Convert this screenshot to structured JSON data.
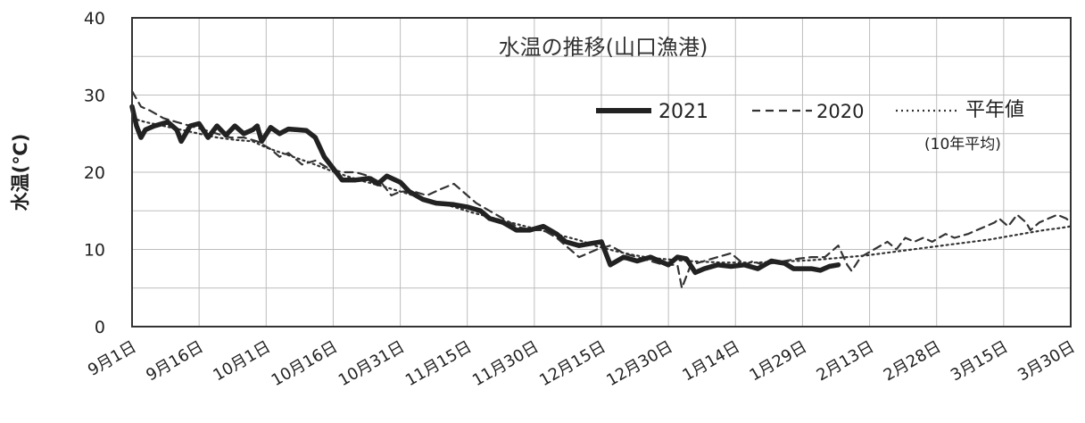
{
  "chart_data": {
    "type": "line",
    "title": "水温の推移(山口漁港)",
    "ylabel": "水温(℃)",
    "xlabel": "",
    "ylim": [
      0,
      40
    ],
    "yticks": [
      "0",
      "10",
      "20",
      "30",
      "40"
    ],
    "grid": true,
    "legend_position": "top-right (inside plot)",
    "categories": [
      "9月1日",
      "9月16日",
      "10月1日",
      "10月16日",
      "10月31日",
      "11月15日",
      "11月30日",
      "12月15日",
      "12月30日",
      "1月14日",
      "1月29日",
      "2月13日",
      "2月28日",
      "3月15日",
      "3月30日"
    ],
    "series": [
      {
        "name": "2021",
        "style": "solid-thick",
        "color": "#222222",
        "points": [
          [
            0,
            28.5
          ],
          [
            1,
            26
          ],
          [
            2,
            24.5
          ],
          [
            3,
            25.5
          ],
          [
            5,
            26
          ],
          [
            8,
            26.5
          ],
          [
            10,
            25.5
          ],
          [
            11,
            24
          ],
          [
            13,
            26
          ],
          [
            15,
            26.3
          ],
          [
            17,
            24.5
          ],
          [
            19,
            26
          ],
          [
            21,
            24.8
          ],
          [
            23,
            26
          ],
          [
            25,
            25
          ],
          [
            27,
            25.5
          ],
          [
            28,
            26
          ],
          [
            29,
            24
          ],
          [
            31,
            25.8
          ],
          [
            33,
            25
          ],
          [
            35,
            25.6
          ],
          [
            37,
            25.5
          ],
          [
            39,
            25.4
          ],
          [
            41,
            24.5
          ],
          [
            43,
            22
          ],
          [
            45,
            20.5
          ],
          [
            47,
            19
          ],
          [
            50,
            19
          ],
          [
            53,
            19.2
          ],
          [
            55,
            18.5
          ],
          [
            57,
            19.5
          ],
          [
            60,
            18.7
          ],
          [
            62,
            17.5
          ],
          [
            65,
            16.5
          ],
          [
            68,
            16
          ],
          [
            72,
            15.8
          ],
          [
            75,
            15.5
          ],
          [
            78,
            15
          ],
          [
            80,
            14
          ],
          [
            83,
            13.5
          ],
          [
            86,
            12.5
          ],
          [
            89,
            12.5
          ],
          [
            92,
            13
          ],
          [
            95,
            12
          ],
          [
            97,
            11
          ],
          [
            100,
            10.5
          ],
          [
            103,
            10.8
          ],
          [
            105,
            11
          ],
          [
            107,
            8
          ],
          [
            110,
            9
          ],
          [
            113,
            8.5
          ],
          [
            116,
            9
          ],
          [
            118,
            8.5
          ],
          [
            120,
            8
          ],
          [
            122,
            9
          ],
          [
            124,
            8.8
          ],
          [
            126,
            7
          ],
          [
            128,
            7.5
          ],
          [
            131,
            8
          ],
          [
            134,
            7.8
          ],
          [
            137,
            8
          ],
          [
            140,
            7.5
          ],
          [
            143,
            8.5
          ],
          [
            146,
            8.2
          ],
          [
            148,
            7.5
          ],
          [
            150,
            7.5
          ],
          [
            152,
            7.5
          ],
          [
            154,
            7.3
          ],
          [
            156,
            7.8
          ],
          [
            158,
            8
          ]
        ]
      },
      {
        "name": "2020",
        "style": "dashed",
        "color": "#333333",
        "points": [
          [
            0,
            30.5
          ],
          [
            2,
            28.5
          ],
          [
            4,
            28
          ],
          [
            7,
            27
          ],
          [
            10,
            26.5
          ],
          [
            13,
            26
          ],
          [
            16,
            25.5
          ],
          [
            19,
            25
          ],
          [
            22,
            24.5
          ],
          [
            25,
            24.5
          ],
          [
            28,
            24
          ],
          [
            31,
            23
          ],
          [
            33,
            22
          ],
          [
            35,
            22.5
          ],
          [
            38,
            21
          ],
          [
            41,
            21.5
          ],
          [
            44,
            20.5
          ],
          [
            47,
            20
          ],
          [
            50,
            20
          ],
          [
            53,
            19.5
          ],
          [
            56,
            18.5
          ],
          [
            58,
            17
          ],
          [
            60,
            17.5
          ],
          [
            63,
            17.5
          ],
          [
            66,
            17
          ],
          [
            69,
            17.8
          ],
          [
            72,
            18.5
          ],
          [
            74,
            17.5
          ],
          [
            77,
            16
          ],
          [
            80,
            15
          ],
          [
            83,
            14
          ],
          [
            86,
            13
          ],
          [
            89,
            12.5
          ],
          [
            92,
            12.5
          ],
          [
            95,
            11.5
          ],
          [
            98,
            10
          ],
          [
            100,
            9
          ],
          [
            102,
            9.5
          ],
          [
            104,
            10
          ],
          [
            107,
            10.5
          ],
          [
            110,
            9.5
          ],
          [
            113,
            9
          ],
          [
            116,
            8.5
          ],
          [
            119,
            8
          ],
          [
            122,
            8
          ],
          [
            123,
            5
          ],
          [
            125,
            8
          ],
          [
            128,
            8.5
          ],
          [
            131,
            9
          ],
          [
            134,
            9.5
          ],
          [
            137,
            8
          ],
          [
            139,
            8.5
          ],
          [
            141,
            8
          ],
          [
            143,
            8.2
          ],
          [
            146,
            8.5
          ],
          [
            149,
            8.8
          ],
          [
            152,
            9
          ],
          [
            155,
            9
          ],
          [
            158,
            10.5
          ],
          [
            160,
            8
          ],
          [
            161,
            7.2
          ],
          [
            163,
            9
          ],
          [
            166,
            10
          ],
          [
            169,
            11
          ],
          [
            171,
            10
          ],
          [
            173,
            11.5
          ],
          [
            175,
            11
          ],
          [
            177,
            11.5
          ],
          [
            179,
            11
          ],
          [
            182,
            12
          ],
          [
            184,
            11.5
          ],
          [
            187,
            12
          ],
          [
            189,
            12.5
          ],
          [
            191,
            13
          ],
          [
            193,
            13.5
          ],
          [
            194,
            14
          ],
          [
            196,
            13
          ],
          [
            198,
            14.5
          ],
          [
            200,
            13.5
          ],
          [
            201,
            12.5
          ],
          [
            203,
            13.5
          ],
          [
            205,
            14
          ],
          [
            207,
            14.5
          ],
          [
            209,
            14
          ],
          [
            210,
            13.5
          ]
        ]
      },
      {
        "name": "平年値",
        "name_note": "(10年平均)",
        "style": "dotted",
        "color": "#333333",
        "points": [
          [
            0,
            27
          ],
          [
            3,
            26.5
          ],
          [
            7,
            26
          ],
          [
            11,
            25.5
          ],
          [
            15,
            25
          ],
          [
            19,
            24.5
          ],
          [
            23,
            24.2
          ],
          [
            27,
            24
          ],
          [
            30,
            23.2
          ],
          [
            33,
            22.6
          ],
          [
            36,
            22
          ],
          [
            40,
            21.2
          ],
          [
            44,
            20.3
          ],
          [
            48,
            19.5
          ],
          [
            52,
            18.8
          ],
          [
            56,
            18.2
          ],
          [
            60,
            17.5
          ],
          [
            64,
            16.8
          ],
          [
            68,
            16.2
          ],
          [
            72,
            15.5
          ],
          [
            76,
            14.8
          ],
          [
            80,
            14.2
          ],
          [
            84,
            13.6
          ],
          [
            88,
            13
          ],
          [
            92,
            12.4
          ],
          [
            96,
            11.8
          ],
          [
            100,
            11.2
          ],
          [
            104,
            10.4
          ],
          [
            108,
            9.8
          ],
          [
            112,
            9.3
          ],
          [
            116,
            8.9
          ],
          [
            120,
            8.7
          ],
          [
            124,
            8.5
          ],
          [
            128,
            8.4
          ],
          [
            132,
            8.3
          ],
          [
            136,
            8.3
          ],
          [
            140,
            8.3
          ],
          [
            144,
            8.4
          ],
          [
            148,
            8.5
          ],
          [
            152,
            8.6
          ],
          [
            156,
            8.8
          ],
          [
            160,
            9
          ],
          [
            164,
            9.2
          ],
          [
            168,
            9.5
          ],
          [
            172,
            9.8
          ],
          [
            176,
            10.1
          ],
          [
            180,
            10.4
          ],
          [
            184,
            10.7
          ],
          [
            188,
            11
          ],
          [
            192,
            11.3
          ],
          [
            196,
            11.7
          ],
          [
            200,
            12.1
          ],
          [
            204,
            12.5
          ],
          [
            208,
            12.8
          ],
          [
            210,
            13
          ]
        ]
      }
    ]
  },
  "legend": {
    "item_2021": "2021",
    "item_2020": "2020",
    "item_normal": "平年値",
    "item_normal_sub": "(10年平均)"
  }
}
